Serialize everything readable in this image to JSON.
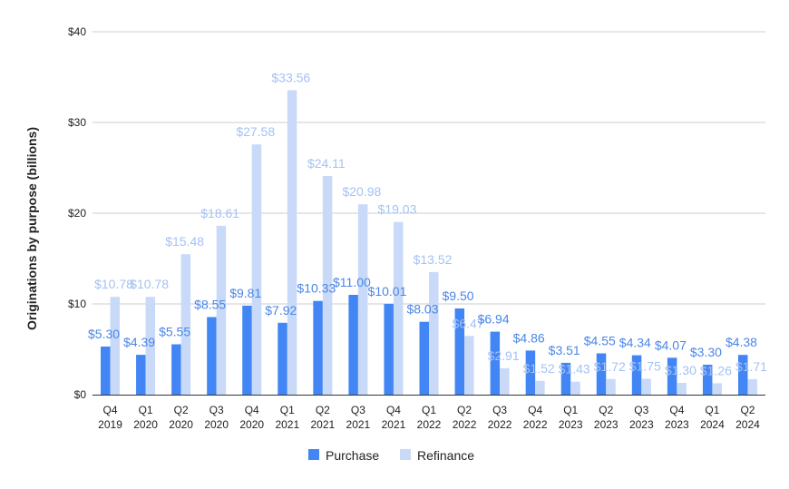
{
  "chart_data": {
    "type": "bar",
    "ylabel": "Originations by purpose (billions)",
    "xlabel": "",
    "ylim": [
      0,
      40
    ],
    "yticks": [
      0,
      10,
      20,
      30,
      40
    ],
    "ytick_labels": [
      "$0",
      "$10",
      "$20",
      "$30",
      "$40"
    ],
    "grid": true,
    "legend_position": "bottom",
    "categories": [
      [
        "Q4",
        "2019"
      ],
      [
        "Q1",
        "2020"
      ],
      [
        "Q2",
        "2020"
      ],
      [
        "Q3",
        "2020"
      ],
      [
        "Q4",
        "2020"
      ],
      [
        "Q1",
        "2021"
      ],
      [
        "Q2",
        "2021"
      ],
      [
        "Q3",
        "2021"
      ],
      [
        "Q4",
        "2021"
      ],
      [
        "Q1",
        "2022"
      ],
      [
        "Q2",
        "2022"
      ],
      [
        "Q3",
        "2022"
      ],
      [
        "Q4",
        "2022"
      ],
      [
        "Q1",
        "2023"
      ],
      [
        "Q2",
        "2023"
      ],
      [
        "Q3",
        "2023"
      ],
      [
        "Q4",
        "2023"
      ],
      [
        "Q1",
        "2024"
      ],
      [
        "Q2",
        "2024"
      ]
    ],
    "series": [
      {
        "name": "Purchase",
        "color": "#4285f4",
        "label_color": "#4a86e8",
        "values": [
          5.3,
          4.39,
          5.55,
          8.55,
          9.81,
          7.92,
          10.33,
          11.0,
          10.01,
          8.03,
          9.5,
          6.94,
          4.86,
          3.51,
          4.55,
          4.34,
          4.07,
          3.3,
          4.38
        ],
        "labels": [
          "$5.30",
          "$4.39",
          "$5.55",
          "$8.55",
          "$9.81",
          "$7.92",
          "$10.33",
          "$11.00",
          "$10.01",
          "$8.03",
          "$9.50",
          "$6.94",
          "$4.86",
          "$3.51",
          "$4.55",
          "$4.34",
          "$4.07",
          "$3.30",
          "$4.38"
        ]
      },
      {
        "name": "Refinance",
        "color": "#c9daf8",
        "label_color": "#a4c2f4",
        "values": [
          10.78,
          10.78,
          15.48,
          18.61,
          27.58,
          33.56,
          24.11,
          20.98,
          19.03,
          13.52,
          6.47,
          2.91,
          1.52,
          1.43,
          1.72,
          1.75,
          1.3,
          1.26,
          1.71
        ],
        "labels": [
          "$10.78",
          "$10.78",
          "$15.48",
          "$18.61",
          "$27.58",
          "$33.56",
          "$24.11",
          "$20.98",
          "$19.03",
          "$13.52",
          "$6.47",
          "$2.91",
          "$1.52",
          "$1.43",
          "$1.72",
          "$1.75",
          "$1.30",
          "$1.26",
          "$1.71"
        ]
      }
    ],
    "gridline_color": "#cccccc",
    "axis_color": "#333333"
  }
}
